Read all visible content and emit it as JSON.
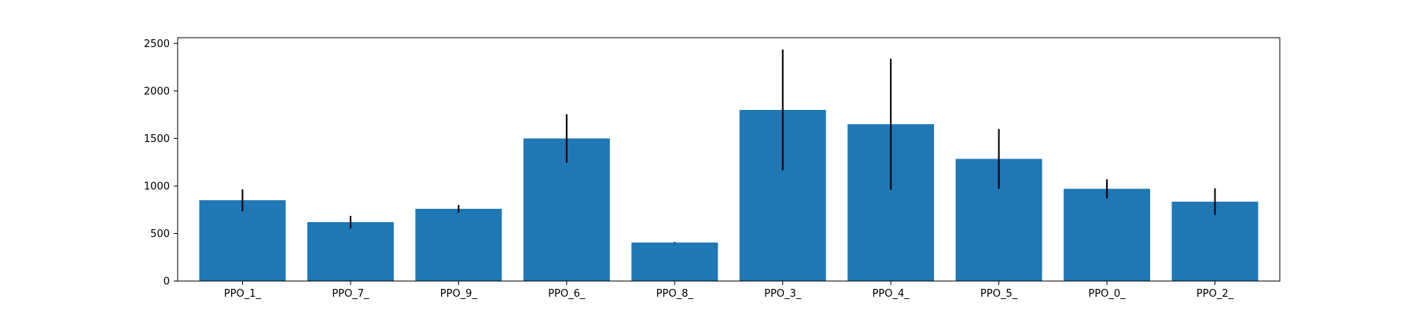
{
  "chart_data": {
    "type": "bar",
    "categories": [
      "PPO_1_",
      "PPO_7_",
      "PPO_9_",
      "PPO_6_",
      "PPO_8_",
      "PPO_3_",
      "PPO_4_",
      "PPO_5_",
      "PPO_0_",
      "PPO_2_"
    ],
    "values": [
      850,
      620,
      760,
      1500,
      405,
      1800,
      1650,
      1285,
      970,
      835
    ],
    "errors": [
      115,
      65,
      40,
      255,
      5,
      635,
      690,
      315,
      100,
      140
    ],
    "ylim": [
      0,
      2560
    ],
    "yticks": [
      0,
      500,
      1000,
      1500,
      2000,
      2500
    ],
    "title": "",
    "xlabel": "",
    "ylabel": "",
    "bar_color": "#1f77b4",
    "error_color": "#000000",
    "grid": false
  }
}
